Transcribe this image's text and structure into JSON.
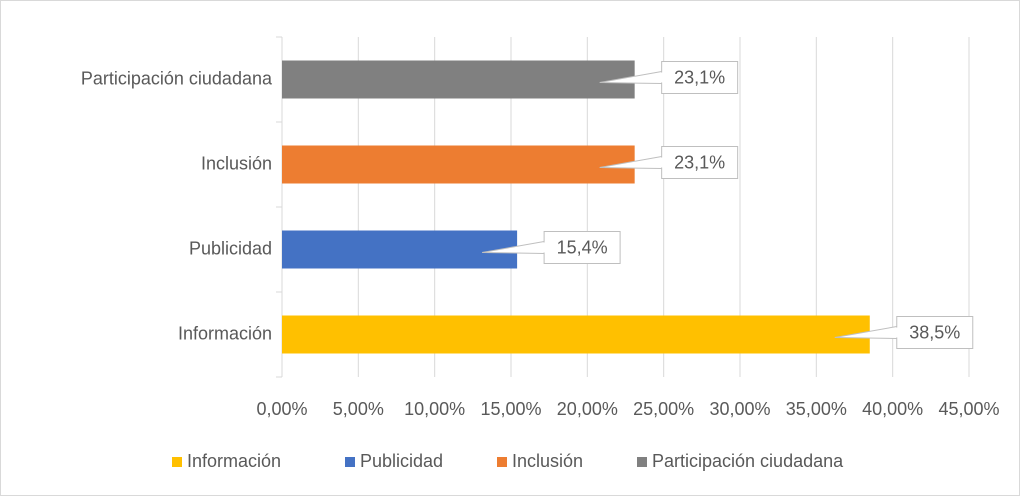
{
  "chart_data": {
    "type": "bar",
    "orientation": "horizontal",
    "categories": [
      "Información",
      "Publicidad",
      "Inclusión",
      "Participación ciudadana"
    ],
    "values": [
      38.5,
      15.4,
      23.1,
      23.1
    ],
    "value_labels": [
      "38,5%",
      "15,4%",
      "23,1%",
      "23,1%"
    ],
    "colors": [
      "#ffc000",
      "#4472c4",
      "#ed7d31",
      "#808080"
    ],
    "xlim": [
      0,
      45
    ],
    "xticks": [
      {
        "value": 0,
        "label": "0,00%"
      },
      {
        "value": 5,
        "label": "5,00%"
      },
      {
        "value": 10,
        "label": "10,00%"
      },
      {
        "value": 15,
        "label": "15,00%"
      },
      {
        "value": 20,
        "label": "20,00%"
      },
      {
        "value": 25,
        "label": "25,00%"
      },
      {
        "value": 30,
        "label": "30,00%"
      },
      {
        "value": 35,
        "label": "35,00%"
      },
      {
        "value": 40,
        "label": "40,00%"
      },
      {
        "value": 45,
        "label": "45,00%"
      }
    ],
    "grid": true,
    "legend": "bottom"
  }
}
